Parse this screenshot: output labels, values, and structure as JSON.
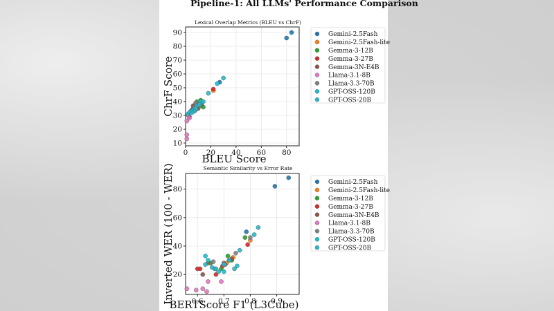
{
  "figure_title": "Pipeline-1: All LLMs' Performance Comparison",
  "colors": {
    "Gemini-2.5Fash": "#1f77b4",
    "Gemini-2.5Fash-lite": "#ff7f0e",
    "Gemma-3-12B": "#2ca02c",
    "Gemma-3-27B": "#d62728",
    "Gemma-3N-E4B": "#8c564b",
    "Llama-3.1-8B": "#e377c2",
    "Llama-3.3-70B": "#7f7f7f",
    "GPT-OSS-120B": "#17becf",
    "GPT-OSS-20B": "#2bb5c7"
  },
  "chart_data": [
    {
      "type": "scatter",
      "title": "Lexical Overlap Metrics (BLEU vs ChrF)",
      "xlabel": "BLEU Score",
      "ylabel": "ChrF Score",
      "xlim": [
        0,
        90
      ],
      "ylim": [
        8,
        94
      ],
      "xticks": [
        0,
        20,
        40,
        60,
        80
      ],
      "yticks": [
        10,
        20,
        30,
        40,
        50,
        60,
        70,
        80,
        90
      ],
      "legend": [
        "Gemini-2.5Fash",
        "Gemini-2.5Fash-lite",
        "Gemma-3-12B",
        "Gemma-3-27B",
        "Gemma-3N-E4B",
        "Llama-3.1-8B",
        "Llama-3.3-70B",
        "GPT-OSS-120B",
        "GPT-OSS-20B"
      ],
      "series": [
        {
          "name": "Gemini-2.5Fash",
          "points": [
            [
              84,
              90
            ],
            [
              80,
              86
            ],
            [
              27,
              54
            ]
          ]
        },
        {
          "name": "Gemini-2.5Fash-lite",
          "points": [
            [
              13,
              37
            ],
            [
              10,
              37
            ],
            [
              22,
              48
            ]
          ]
        },
        {
          "name": "Gemma-3-12B",
          "points": [
            [
              9,
              40
            ],
            [
              7,
              37
            ],
            [
              14,
              36
            ],
            [
              12,
              41
            ],
            [
              11,
              38
            ]
          ]
        },
        {
          "name": "Gemma-3-27B",
          "points": [
            [
              10,
              37
            ],
            [
              8,
              38
            ],
            [
              12,
              38
            ],
            [
              22,
              49
            ],
            [
              6,
              35
            ]
          ]
        },
        {
          "name": "Gemma-3N-E4B",
          "points": [
            [
              6,
              37
            ],
            [
              3,
              29
            ],
            [
              9,
              36
            ],
            [
              5,
              34
            ],
            [
              10,
              35
            ]
          ]
        },
        {
          "name": "Llama-3.1-8B",
          "points": [
            [
              1,
              13
            ],
            [
              1,
              16
            ],
            [
              1,
              26
            ],
            [
              3,
              28
            ],
            [
              2,
              30
            ]
          ]
        },
        {
          "name": "Llama-3.3-70B",
          "points": [
            [
              11,
              37
            ],
            [
              7,
              36
            ],
            [
              8,
              39
            ],
            [
              13,
              39
            ],
            [
              5,
              33
            ]
          ]
        },
        {
          "name": "GPT-OSS-120B",
          "points": [
            [
              4,
              33
            ],
            [
              6,
              34
            ],
            [
              8,
              34
            ],
            [
              12,
              40
            ],
            [
              25,
              53
            ],
            [
              2,
              31
            ],
            [
              9,
              37
            ]
          ]
        },
        {
          "name": "GPT-OSS-20B",
          "points": [
            [
              3,
              32
            ],
            [
              7,
              33
            ],
            [
              8,
              35
            ],
            [
              14,
              40
            ],
            [
              18,
              46
            ],
            [
              30,
              57
            ],
            [
              5,
              32
            ],
            [
              11,
              38
            ]
          ]
        }
      ]
    },
    {
      "type": "scatter",
      "title": "Semantic Similarity vs Error Rate",
      "xlabel": "BERTScore F1 (L3Cube)",
      "ylabel": "Inverted WER (100 - WER)",
      "xlim": [
        0.555,
        0.985
      ],
      "ylim": [
        6,
        91
      ],
      "xticks": [
        0.6,
        0.7,
        0.8,
        0.9
      ],
      "yticks": [
        20,
        40,
        60,
        80
      ],
      "legend": [
        "Gemini-2.5Fash",
        "Gemini-2.5Fash-lite",
        "Gemma-3-12B",
        "Gemma-3-27B",
        "Gemma-3N-E4B",
        "Llama-3.1-8B",
        "Llama-3.3-70B",
        "GPT-OSS-120B",
        "GPT-OSS-20B"
      ],
      "series": [
        {
          "name": "Gemini-2.5Fash",
          "points": [
            [
              0.945,
              88
            ],
            [
              0.893,
              82
            ],
            [
              0.785,
              50
            ]
          ]
        },
        {
          "name": "Gemini-2.5Fash-lite",
          "points": [
            [
              0.735,
              32
            ],
            [
              0.71,
              28
            ],
            [
              0.8,
              44
            ]
          ]
        },
        {
          "name": "Gemma-3-12B",
          "points": [
            [
              0.65,
              28
            ],
            [
              0.73,
              30
            ],
            [
              0.78,
              46
            ],
            [
              0.69,
              24
            ],
            [
              0.715,
              33
            ]
          ]
        },
        {
          "name": "Gemma-3-27B",
          "points": [
            [
              0.6,
              24
            ],
            [
              0.61,
              24
            ],
            [
              0.67,
              20
            ],
            [
              0.79,
              41
            ],
            [
              0.695,
              26
            ]
          ]
        },
        {
          "name": "Gemma-3N-E4B",
          "points": [
            [
              0.64,
              28
            ],
            [
              0.72,
              30
            ],
            [
              0.62,
              20
            ],
            [
              0.7,
              28
            ],
            [
              0.73,
              31
            ]
          ]
        },
        {
          "name": "Llama-3.1-8B",
          "points": [
            [
              0.56,
              10
            ],
            [
              0.595,
              9
            ],
            [
              0.62,
              10
            ],
            [
              0.64,
              15
            ],
            [
              0.69,
              15
            ],
            [
              0.635,
              8
            ]
          ]
        },
        {
          "name": "Llama-3.3-70B",
          "points": [
            [
              0.7,
              28
            ],
            [
              0.66,
              29
            ],
            [
              0.705,
              27
            ],
            [
              0.8,
              46
            ],
            [
              0.745,
              35
            ]
          ]
        },
        {
          "name": "GPT-OSS-120B",
          "points": [
            [
              0.63,
              33
            ],
            [
              0.64,
              30
            ],
            [
              0.68,
              22
            ],
            [
              0.75,
              26
            ],
            [
              0.815,
              48
            ],
            [
              0.7,
              22
            ],
            [
              0.665,
              24
            ]
          ]
        },
        {
          "name": "GPT-OSS-20B",
          "points": [
            [
              0.63,
              27
            ],
            [
              0.655,
              25
            ],
            [
              0.7,
              27
            ],
            [
              0.76,
              37
            ],
            [
              0.83,
              53
            ],
            [
              0.74,
              24
            ],
            [
              0.72,
              30
            ],
            [
              0.67,
              24
            ]
          ]
        }
      ]
    }
  ]
}
